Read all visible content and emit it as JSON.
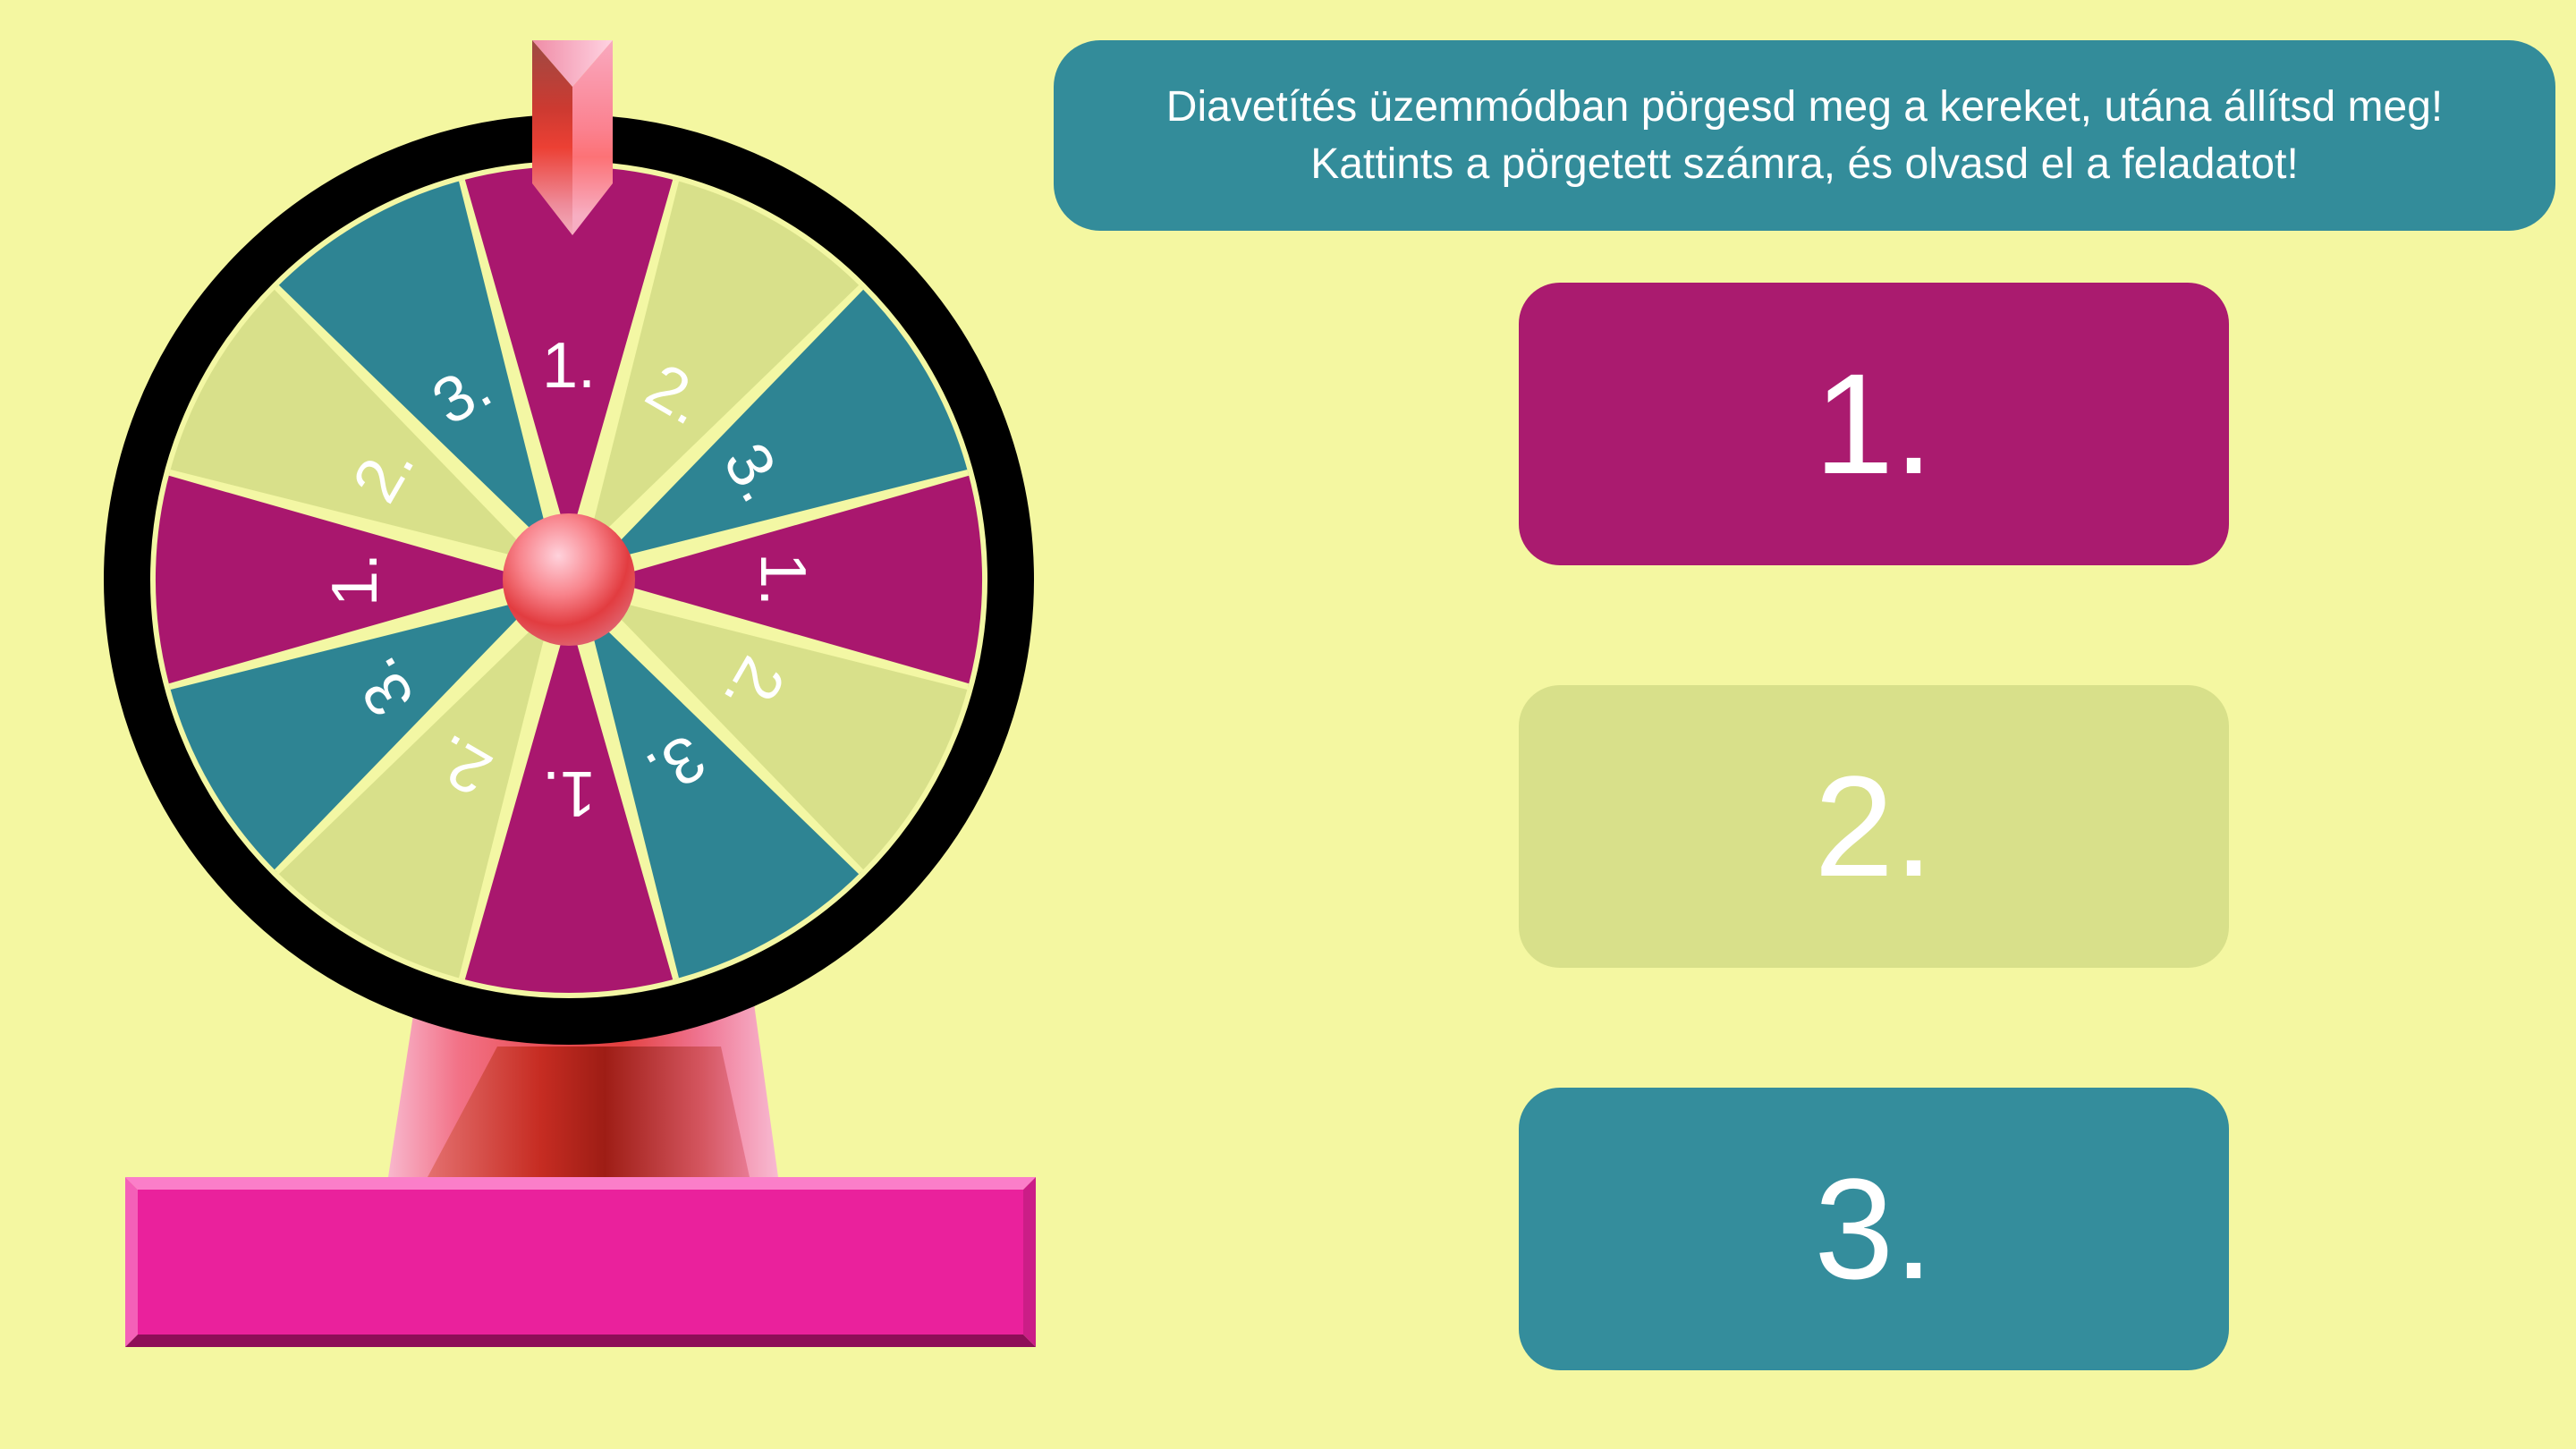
{
  "scene": {
    "background_color": "#f4f7a1"
  },
  "instruction_banner": {
    "bg_color": "#338c9a",
    "text_color": "#ffffff",
    "line1": "Diavetítés üzemmódban pörgesd meg a kereket, utána állítsd meg!",
    "line2": "Kattints a pörgetett számra, és olvasd el a feladatot!"
  },
  "wheel": {
    "rim_color": "#000000",
    "separator_color": "#f3f7a4",
    "number_color": "#ffffff",
    "hub_color": "#e2434d",
    "pointer_color": "#ee5d74",
    "segments": [
      {
        "label": "1.",
        "color": "#a9176e"
      },
      {
        "label": "2.",
        "color": "#d8e08a"
      },
      {
        "label": "3.",
        "color": "#2e8493"
      },
      {
        "label": "1.",
        "color": "#a9176e"
      },
      {
        "label": "2.",
        "color": "#d8e08a"
      },
      {
        "label": "3.",
        "color": "#2e8493"
      },
      {
        "label": "1.",
        "color": "#a9176e"
      },
      {
        "label": "2.",
        "color": "#d8e08a"
      },
      {
        "label": "3.",
        "color": "#2e8493"
      },
      {
        "label": "1.",
        "color": "#a9176e"
      },
      {
        "label": "2.",
        "color": "#d8e08a"
      },
      {
        "label": "3.",
        "color": "#2e8493"
      }
    ]
  },
  "stand": {
    "base_color": "#ea219c"
  },
  "answer_buttons": [
    {
      "label": "1.",
      "bg_color": "#aa1b6f",
      "text_color": "#ffffff"
    },
    {
      "label": "2.",
      "bg_color": "#d8e08a",
      "text_color": "#ffffff"
    },
    {
      "label": "3.",
      "bg_color": "#348d9c",
      "text_color": "#ffffff"
    }
  ]
}
